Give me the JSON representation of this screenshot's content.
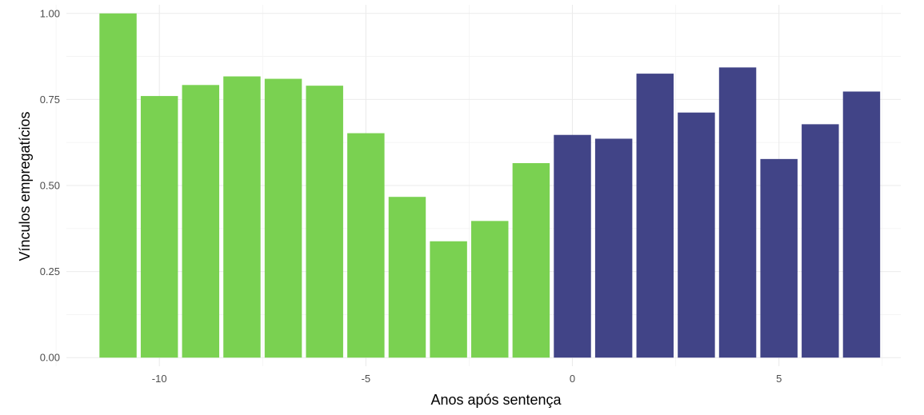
{
  "chart_data": {
    "type": "bar",
    "xlabel": "Anos após sentença",
    "ylabel": "Vínculos empregatícios",
    "xlim": [
      -12.25,
      7.95
    ],
    "ylim": [
      -0.025,
      1.025
    ],
    "x_ticks": [
      {
        "value": -10,
        "label": "-10"
      },
      {
        "value": -5,
        "label": "-5"
      },
      {
        "value": 0,
        "label": "0"
      },
      {
        "value": 5,
        "label": "5"
      }
    ],
    "y_ticks": [
      {
        "value": 0.0,
        "label": "0.00"
      },
      {
        "value": 0.25,
        "label": "0.25"
      },
      {
        "value": 0.5,
        "label": "0.50"
      },
      {
        "value": 0.75,
        "label": "0.75"
      },
      {
        "value": 1.0,
        "label": "1.00"
      }
    ],
    "grid": true,
    "legend": "none",
    "bar_width": 0.9,
    "colors": {
      "before": "#7ad151",
      "after": "#414487"
    },
    "x": [
      -11,
      -10,
      -9,
      -8,
      -7,
      -6,
      -5,
      -4,
      -3,
      -2,
      -1,
      0,
      1,
      2,
      3,
      4,
      5,
      6,
      7
    ],
    "values": [
      1.0,
      0.76,
      0.792,
      0.817,
      0.81,
      0.79,
      0.652,
      0.467,
      0.338,
      0.397,
      0.565,
      0.647,
      0.636,
      0.825,
      0.712,
      0.843,
      0.577,
      0.678,
      0.773
    ],
    "groups": [
      "before",
      "before",
      "before",
      "before",
      "before",
      "before",
      "before",
      "before",
      "before",
      "before",
      "before",
      "after",
      "after",
      "after",
      "after",
      "after",
      "after",
      "after",
      "after"
    ]
  }
}
